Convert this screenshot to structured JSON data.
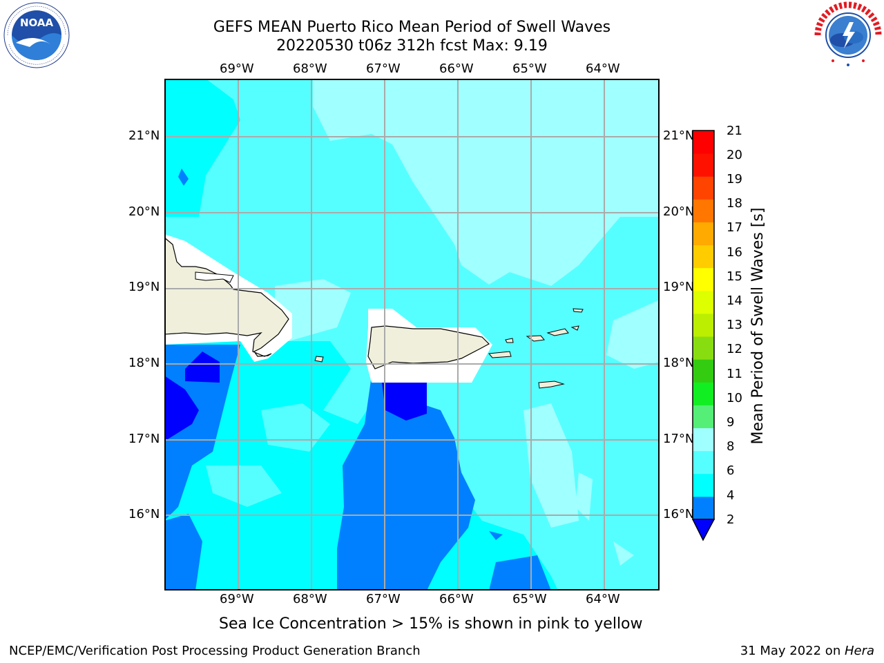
{
  "header": {
    "title_line1": "GEFS MEAN Puerto Rico Mean Period of Swell Waves",
    "title_line2": "20220530 t06z 312h fcst   Max: 9.19"
  },
  "map": {
    "lon_labels": [
      "69°W",
      "68°W",
      "67°W",
      "66°W",
      "65°W",
      "64°W"
    ],
    "lat_labels": [
      "21°N",
      "20°N",
      "19°N",
      "18°N",
      "17°N",
      "16°N"
    ],
    "lon_values": [
      -69,
      -68,
      -67,
      -66,
      -65,
      -64
    ],
    "lat_values": [
      21,
      20,
      19,
      18,
      17,
      16
    ],
    "lon_range": [
      -70,
      -63.25
    ],
    "lat_range": [
      15,
      21.75
    ],
    "land_color": "#efefdc",
    "mask_color": "#ffffff"
  },
  "colorbar": {
    "label": "Mean Period of Swell Waves [s]",
    "ticks": [
      "2",
      "4",
      "6",
      "8",
      "9",
      "10",
      "11",
      "12",
      "13",
      "14",
      "15",
      "16",
      "17",
      "18",
      "19",
      "20",
      "21"
    ],
    "colors": [
      "#0000ff",
      "#0080ff",
      "#00ffff",
      "#56ffff",
      "#a0ffff",
      "#55ee77",
      "#11ee22",
      "#33cc11",
      "#88dd11",
      "#bbee00",
      "#ddff00",
      "#ffff00",
      "#ffcc00",
      "#ffaa00",
      "#ff7700",
      "#ff4400",
      "#ff1100",
      "#ff0000"
    ],
    "extend": "min"
  },
  "caption": "Sea Ice Concentration > 15% is shown in pink to yellow",
  "footer": {
    "left": "NCEP/EMC/Verification Post Processing Product Generation Branch",
    "right_prefix": "31 May 2022 on ",
    "right_host": "Hera"
  },
  "logos": {
    "left": "noaa-logo",
    "right": "nws-logo"
  }
}
